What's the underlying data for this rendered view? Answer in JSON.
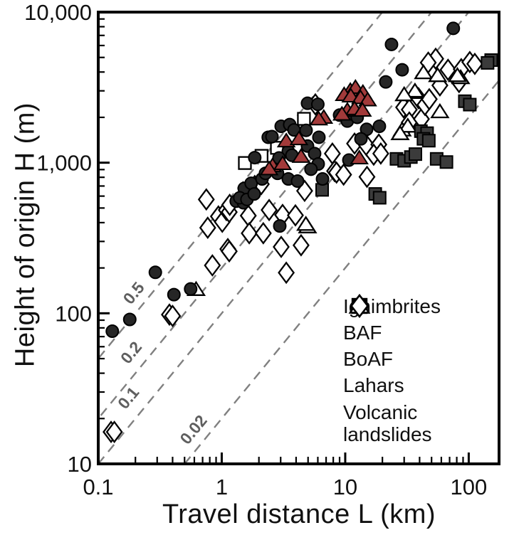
{
  "chart_data": {
    "type": "scatter",
    "title": "",
    "xlabel": "Travel distance L (km)",
    "ylabel": "Height of origin H (m)",
    "x_scale": "log",
    "y_scale": "log",
    "xlim": [
      0.1,
      176
    ],
    "ylim": [
      10,
      10000
    ],
    "grid": false,
    "legend_position": "inside-lower-right",
    "x_ticks": [
      {
        "v": 0.1,
        "label": "0.1"
      },
      {
        "v": 1,
        "label": "1"
      },
      {
        "v": 10,
        "label": "10"
      },
      {
        "v": 100,
        "label": "100"
      }
    ],
    "y_ticks": [
      {
        "v": 10,
        "label": "10"
      },
      {
        "v": 100,
        "label": "100"
      },
      {
        "v": 1000,
        "label": "1,000"
      },
      {
        "v": 10000,
        "label": "10,000"
      }
    ],
    "ref_lines": [
      {
        "ratio": 0.5,
        "label": "0.5",
        "label_L": 0.21,
        "label_H": 129
      },
      {
        "ratio": 0.2,
        "label": "0.2",
        "label_L": 0.2,
        "label_H": 52
      },
      {
        "ratio": 0.1,
        "label": "0.1",
        "label_L": 0.19,
        "label_H": 26
      },
      {
        "ratio": 0.02,
        "label": "0.02",
        "label_L": 0.64,
        "label_H": 16
      }
    ],
    "ref_line_color": "#808080",
    "ref_label_color": "#5f5f5f",
    "series": [
      {
        "name": "Ignimbrites",
        "marker": "square",
        "fill": "#3b3b3b",
        "stroke": "#000000",
        "points": [
          [
            152,
            4800
          ],
          [
            142,
            4600
          ],
          [
            93,
            2560
          ],
          [
            102,
            2430
          ],
          [
            41,
            1620
          ],
          [
            46,
            1570
          ],
          [
            43,
            1440
          ],
          [
            47.5,
            1400
          ],
          [
            26,
            1060
          ],
          [
            30,
            1030
          ],
          [
            34,
            1090
          ],
          [
            37,
            1140
          ],
          [
            55,
            1060
          ],
          [
            66,
            1010
          ],
          [
            17.5,
            620
          ],
          [
            19,
            585
          ],
          [
            6.5,
            660
          ]
        ]
      },
      {
        "name": "BAF",
        "marker": "circle",
        "fill": "#262626",
        "stroke": "#000000",
        "points": [
          [
            0.13,
            76
          ],
          [
            0.18,
            91
          ],
          [
            0.29,
            187
          ],
          [
            0.41,
            133
          ],
          [
            0.56,
            145
          ],
          [
            1.31,
            555
          ],
          [
            1.5,
            542
          ],
          [
            1.52,
            675
          ],
          [
            1.73,
            730
          ],
          [
            1.4,
            585
          ],
          [
            1.6,
            570
          ],
          [
            1.83,
            620
          ],
          [
            1.85,
            1080
          ],
          [
            2.48,
            1480
          ],
          [
            2.38,
            1475
          ],
          [
            2.55,
            1490
          ],
          [
            2.95,
            380
          ],
          [
            3.03,
            1745
          ],
          [
            3.55,
            1790
          ],
          [
            3.85,
            1650
          ],
          [
            4.82,
            1640
          ],
          [
            4.95,
            2480
          ],
          [
            6.0,
            2440
          ],
          [
            6.12,
            1475
          ],
          [
            4.95,
            1290
          ],
          [
            3.46,
            1190
          ],
          [
            3.7,
            1120
          ],
          [
            5.65,
            1150
          ],
          [
            6.04,
            980
          ],
          [
            5.28,
            905
          ],
          [
            2.91,
            1075
          ],
          [
            2.83,
            850
          ],
          [
            3.46,
            780
          ],
          [
            4.11,
            755
          ],
          [
            2.12,
            780
          ],
          [
            2.26,
            850
          ],
          [
            6.55,
            780
          ],
          [
            9.0,
            2070
          ],
          [
            10.4,
            1890
          ],
          [
            12.5,
            2000
          ],
          [
            14.9,
            1665
          ],
          [
            13.4,
            1440
          ],
          [
            18.9,
            1745
          ],
          [
            10.7,
            1040
          ],
          [
            21.3,
            3440
          ],
          [
            23.7,
            6100
          ],
          [
            28.9,
            4140
          ],
          [
            75,
            7800
          ]
        ]
      },
      {
        "name": "BoAF",
        "marker": "triangle",
        "fill": "#a23a3a",
        "stroke": "#000000",
        "points": [
          [
            11,
            3020
          ],
          [
            12.1,
            3160
          ],
          [
            13.9,
            2930
          ],
          [
            9.8,
            2830
          ],
          [
            11.1,
            2770
          ],
          [
            13.3,
            2700
          ],
          [
            15.2,
            2610
          ],
          [
            10.4,
            2230
          ],
          [
            11.9,
            2280
          ],
          [
            13.8,
            2230
          ],
          [
            9.4,
            2100
          ],
          [
            6.7,
            2000
          ],
          [
            6.1,
            1950
          ],
          [
            3.33,
            1395
          ],
          [
            4.22,
            1440
          ],
          [
            4.39,
            1100
          ],
          [
            2.58,
            955
          ],
          [
            3.11,
            985
          ],
          [
            2.42,
            910
          ],
          [
            13,
            1075
          ]
        ]
      },
      {
        "name": "Lahars",
        "marker": "triangle",
        "fill": "#ffffff",
        "stroke": "#000000",
        "points": [
          [
            0.62,
            144
          ],
          [
            4.95,
            375
          ],
          [
            4.8,
            390
          ],
          [
            43,
            3960
          ],
          [
            36.2,
            2930
          ],
          [
            58.4,
            2180
          ],
          [
            86,
            3670
          ],
          [
            56,
            3790
          ],
          [
            81,
            3790
          ],
          [
            36.7,
            2990
          ],
          [
            30,
            2830
          ],
          [
            28.9,
            1650
          ],
          [
            32.1,
            1750
          ],
          [
            27.8,
            1560
          ]
        ]
      },
      {
        "name": "Volcanic\nlandslides",
        "marker": "diamond",
        "fill": "#ffffff",
        "stroke": "#000000",
        "points": [
          [
            0.127,
            16.3
          ],
          [
            0.135,
            16.3
          ],
          [
            0.377,
            98
          ],
          [
            0.4,
            96
          ],
          [
            0.75,
            570
          ],
          [
            0.77,
            370
          ],
          [
            0.84,
            208
          ],
          [
            0.94,
            440
          ],
          [
            1.01,
            405
          ],
          [
            1.09,
            485
          ],
          [
            1.12,
            267
          ],
          [
            1.15,
            258
          ],
          [
            1.15,
            470
          ],
          [
            1.16,
            525
          ],
          [
            1.64,
            445
          ],
          [
            1.67,
            340
          ],
          [
            1.85,
            700
          ],
          [
            2.09,
            720
          ],
          [
            2.17,
            340
          ],
          [
            2.42,
            485
          ],
          [
            3.03,
            276
          ],
          [
            3.11,
            450
          ],
          [
            3.95,
            447
          ],
          [
            4.39,
            283
          ],
          [
            3.33,
            186
          ],
          [
            4.69,
            650
          ],
          [
            5.73,
            2440
          ],
          [
            7.87,
            1150
          ],
          [
            8.2,
            880
          ],
          [
            8.5,
            860
          ],
          [
            9.7,
            833
          ],
          [
            11.9,
            1340
          ],
          [
            14.9,
            1300
          ],
          [
            18.7,
            1320
          ],
          [
            17,
            1130
          ],
          [
            19.4,
            1150
          ],
          [
            15,
            805
          ],
          [
            29.7,
            2330
          ],
          [
            33,
            2250
          ],
          [
            33,
            1850
          ],
          [
            39.2,
            2680
          ],
          [
            41.4,
            1950
          ],
          [
            44.2,
            2420
          ],
          [
            47.9,
            2640
          ],
          [
            54,
            4900
          ],
          [
            47,
            4620
          ],
          [
            58.4,
            3260
          ],
          [
            68,
            4140
          ],
          [
            83.5,
            3430
          ],
          [
            87,
            4180
          ],
          [
            102,
            4660
          ],
          [
            112,
            4530
          ]
        ]
      },
      {
        "name": "",
        "marker": "square",
        "fill": "#ffffff",
        "stroke": "#000000",
        "points": [
          [
            2.1,
            1110
          ],
          [
            1.54,
            995
          ],
          [
            2.8,
            1255
          ],
          [
            4.63,
            1955
          ]
        ]
      }
    ],
    "text_color": "#111111",
    "axis_color": "#000000"
  }
}
